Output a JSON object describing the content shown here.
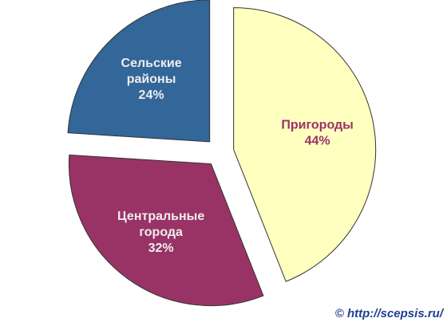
{
  "chart_data": {
    "type": "pie",
    "categories": [
      "Пригороды",
      "Центральные города",
      "Сельские районы"
    ],
    "values": [
      44,
      32,
      24
    ],
    "value_labels": [
      "44%",
      "32%",
      "24%"
    ],
    "colors": [
      "#ffffc0",
      "#993366",
      "#336699"
    ],
    "label_colors": [
      "#993366",
      "#eeeeee",
      "#eeeeee"
    ],
    "watermark": "© http://scepsis.ru/"
  }
}
